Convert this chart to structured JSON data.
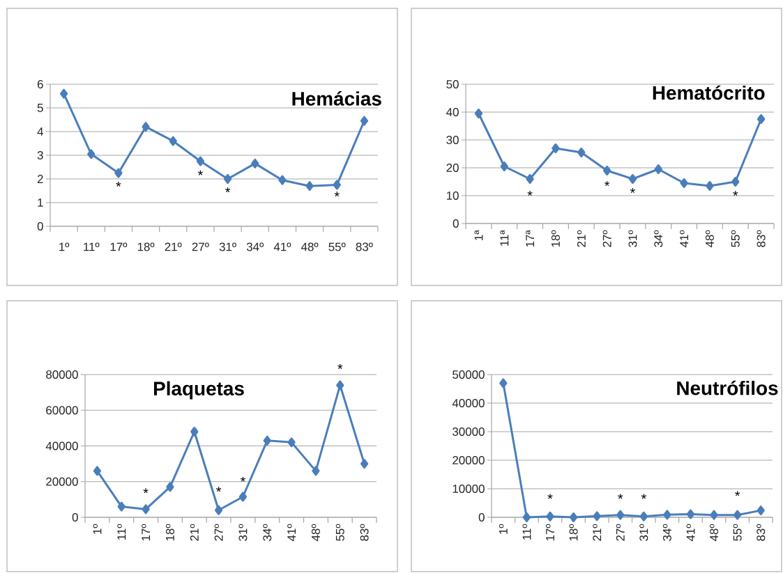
{
  "chart_data": [
    {
      "type": "line",
      "title": "Hemácias",
      "categories": [
        "1º",
        "11º",
        "17º",
        "18º",
        "21º",
        "27º",
        "31º",
        "34º",
        "41º",
        "48º",
        "55º",
        "83º"
      ],
      "values": [
        5.6,
        3.05,
        2.25,
        4.2,
        3.6,
        2.75,
        2.0,
        2.65,
        1.95,
        1.7,
        1.75,
        4.45
      ],
      "color": "#4a7ebb",
      "ylim": [
        0,
        6
      ],
      "yticks": [
        0,
        1,
        2,
        3,
        4,
        5,
        6
      ],
      "grid": "y",
      "marker": "diamond",
      "annotations": [
        "*",
        "*",
        "*",
        "*"
      ]
    },
    {
      "type": "line",
      "title": "Hematócrito",
      "categories": [
        "1ª",
        "11ª",
        "17ª",
        "18º",
        "21º",
        "27º",
        "31º",
        "34º",
        "41º",
        "48º",
        "55º",
        "83º"
      ],
      "values": [
        39.5,
        20.5,
        16,
        27,
        25.5,
        19,
        16,
        19.5,
        14.5,
        13.5,
        15,
        37.5
      ],
      "color": "#4a7ebb",
      "ylim": [
        0,
        50
      ],
      "yticks": [
        0,
        10,
        20,
        30,
        40,
        50
      ],
      "grid": "y",
      "marker": "diamond",
      "annotations": [
        "*",
        "*",
        "*",
        "*"
      ]
    },
    {
      "type": "line",
      "title": "Plaquetas",
      "categories": [
        "1º",
        "11º",
        "17º",
        "18º",
        "21º",
        "27º",
        "31º",
        "34º",
        "41º",
        "48º",
        "55º",
        "83º"
      ],
      "values": [
        26000,
        6000,
        4500,
        17000,
        48000,
        4000,
        11500,
        43000,
        42000,
        26000,
        74000,
        30000
      ],
      "color": "#4a7ebb",
      "ylim": [
        0,
        80000
      ],
      "yticks": [
        0,
        20000,
        40000,
        60000,
        80000
      ],
      "grid": "y",
      "marker": "diamond",
      "annotations": [
        "*",
        "*",
        "*",
        "*"
      ]
    },
    {
      "type": "line",
      "title": "Neutrófilos",
      "categories": [
        "1º",
        "11º",
        "17º",
        "18º",
        "21º",
        "27º",
        "31º",
        "34º",
        "41º",
        "48º",
        "55º",
        "83º"
      ],
      "values": [
        47000,
        0,
        300,
        0,
        400,
        800,
        300,
        900,
        1100,
        800,
        800,
        2400
      ],
      "color": "#4a7ebb",
      "ylim": [
        0,
        50000
      ],
      "yticks": [
        0,
        10000,
        20000,
        30000,
        40000,
        50000
      ],
      "grid": "y",
      "marker": "diamond",
      "annotations": [
        "*",
        "*",
        "*",
        "*"
      ]
    }
  ]
}
